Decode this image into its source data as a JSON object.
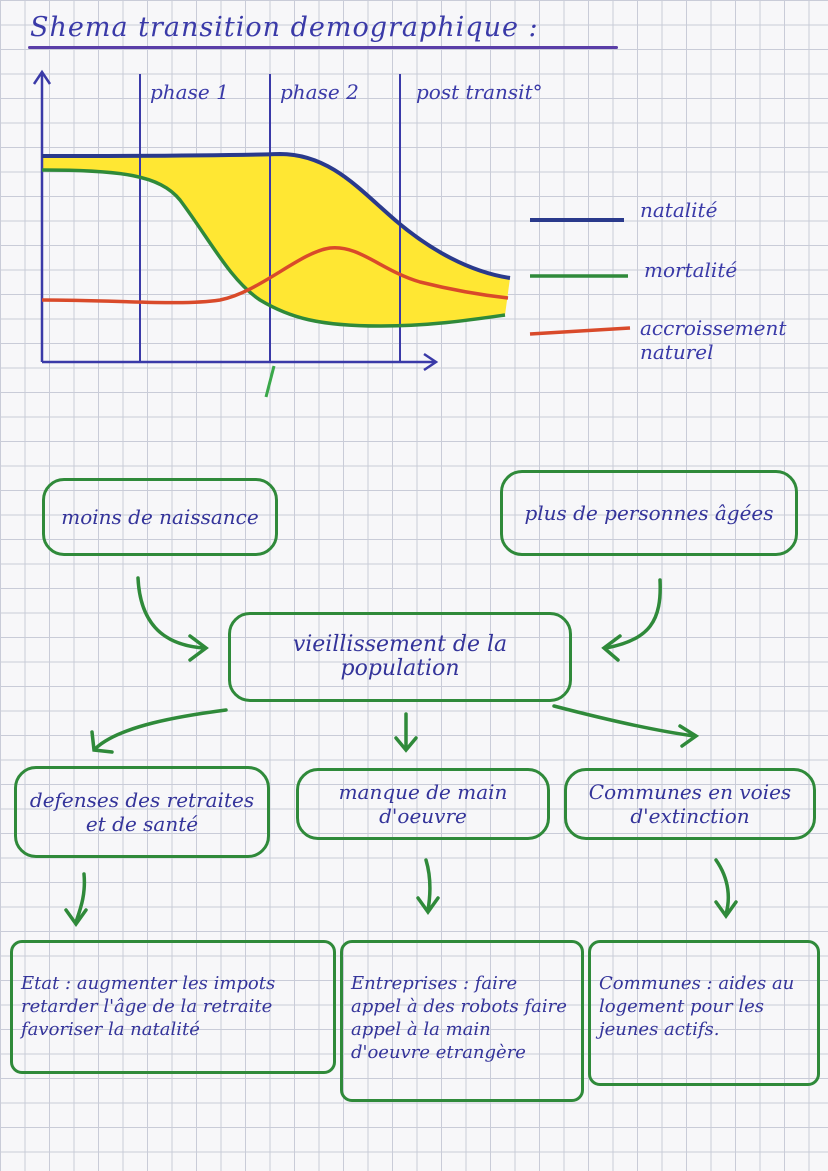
{
  "title": "Shema transition demographique :",
  "phases": [
    "phase 1",
    "phase 2",
    "post transit°"
  ],
  "legend": [
    {
      "label": "natalité",
      "color": "#2a3a8c"
    },
    {
      "label": "mortalité",
      "color": "#2f8a3a"
    },
    {
      "label": "accroissement naturel",
      "color": "#d94a2a"
    }
  ],
  "fill_color": "#ffe733",
  "concept_map": {
    "cause_left": "moins de naissance",
    "cause_right": "plus de personnes âgées",
    "center": "vieillissement de la population",
    "consequences": [
      "defenses des retraites et de santé",
      "manque de main d'oeuvre",
      "Communes en voies d'extinction"
    ],
    "responses": [
      "Etat : augmenter les impots retarder l'âge de la retraite favoriser la natalité",
      "Entreprises : faire appel à des robots faire appel à la main d'oeuvre etrangère",
      "Communes : aides au logement pour les jeunes actifs."
    ]
  }
}
